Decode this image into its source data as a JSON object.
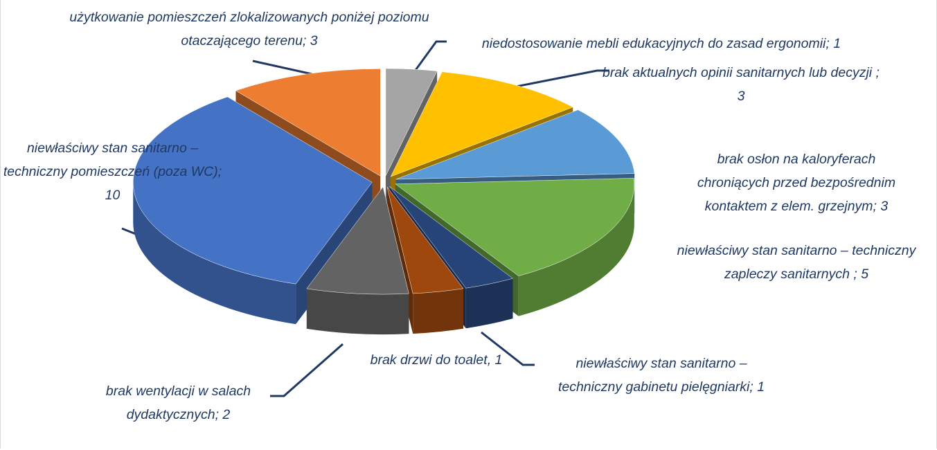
{
  "chart_data": {
    "type": "pie",
    "values": [
      1,
      3,
      3,
      5,
      1,
      1,
      2,
      10,
      3
    ],
    "value_labels": [
      "niedostosowanie mebli edukacyjnych do zasad ergonomii; 1",
      "brak aktualnych opinii sanitarnych lub decyzji ; 3",
      "brak osłon na kaloryferach chroniących przed bezpośrednim kontaktem z elem. grzejnym; 3",
      "niewłaściwy stan sanitarno – techniczny zapleczy sanitarnych ; 5",
      "niewłaściwy stan sanitarno – techniczny gabinetu pielęgniarki; 1",
      "brak drzwi do toalet, 1",
      "brak wentylacji w salach dydaktycznych; 2",
      "niewłaściwy stan sanitarno – techniczny pomieszczeń (poza WC); 10",
      "użytkowanie pomieszczeń zlokalizowanych poniżej poziomu otaczającego terenu; 3"
    ],
    "colors": [
      "#a5a5a5",
      "#ffc000",
      "#5b9bd5",
      "#70ad47",
      "#264478",
      "#9e480e",
      "#636363",
      "#4472c4",
      "#ed7d31"
    ]
  }
}
